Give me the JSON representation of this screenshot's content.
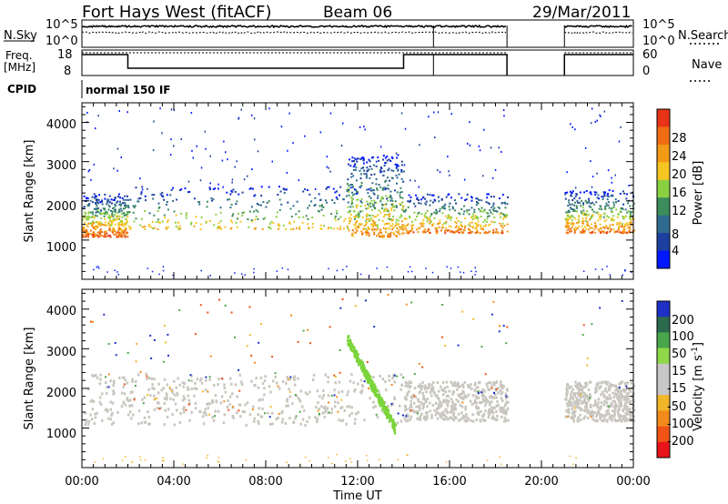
{
  "header": {
    "title": "Fort Hays West (fitACF)",
    "beam": "Beam 06",
    "date": "29/Mar/2011"
  },
  "noise_panel": {
    "left_label": "N.Sky",
    "left_ticks": [
      "10^5",
      "10^0"
    ],
    "right_label": "N.Search",
    "right_ticks": [
      "10^5",
      "10^0"
    ]
  },
  "freq_panel": {
    "left_label_1": "Freq.",
    "left_label_2": "[MHz]",
    "left_ticks": [
      "18",
      "8"
    ],
    "right_label": "Nave",
    "right_ticks": [
      "60",
      "0"
    ]
  },
  "cpid": {
    "label": "CPID",
    "value": "normal 150 IF"
  },
  "colors": {
    "power_scale": [
      "#0018ff",
      "#1d3fa0",
      "#2f6b8e",
      "#3d8c5c",
      "#8ad041",
      "#f6c623",
      "#f39a17",
      "#ef6c12",
      "#e83317"
    ],
    "velocity_scale": [
      "#1e30c8",
      "#2c6a4e",
      "#4aa64a",
      "#8fd84a",
      "#c8c8c8",
      "#c8c8c8",
      "#f2b629",
      "#f28b1c",
      "#ef5316",
      "#e8141a"
    ],
    "echo_gray": "#c8c6be",
    "echo_green": "#7ad43a"
  },
  "chart_data": [
    {
      "type": "heatmap",
      "title": "Power",
      "xlabel": "",
      "ylabel": "Slant Range [km]",
      "x_range_hours_ut": [
        0,
        24
      ],
      "ylim": [
        0,
        4500
      ],
      "yticks": [
        "4000",
        "3000",
        "2000",
        "1000"
      ],
      "colorbar": {
        "label": "Power [dB]",
        "ticks": [
          "28",
          "24",
          "20",
          "16",
          "12",
          "8",
          "4"
        ],
        "range_db": [
          0,
          30
        ]
      },
      "data_gaps_ut": [
        [
          18.5,
          21.0
        ]
      ],
      "echo_bands": [
        {
          "ut_hours": [
            0,
            2
          ],
          "range_km": [
            1100,
            2200
          ],
          "peak_power_db": 28
        },
        {
          "ut_hours": [
            2,
            14
          ],
          "range_km": [
            1300,
            2400
          ],
          "peak_power_db": 20
        },
        {
          "ut_hours": [
            11.5,
            14
          ],
          "range_km": [
            1100,
            3200
          ],
          "peak_power_db": 24
        },
        {
          "ut_hours": [
            14,
            18.5
          ],
          "range_km": [
            1200,
            2200
          ],
          "peak_power_db": 26
        },
        {
          "ut_hours": [
            21,
            24
          ],
          "range_km": [
            1200,
            2300
          ],
          "peak_power_db": 26
        }
      ]
    },
    {
      "type": "heatmap",
      "title": "Velocity",
      "xlabel": "Time UT",
      "ylabel": "Slant Range [km]",
      "x_range_hours_ut": [
        0,
        24
      ],
      "xticks": [
        "00:00",
        "04:00",
        "08:00",
        "12:00",
        "16:00",
        "20:00",
        "00:00"
      ],
      "ylim": [
        0,
        4500
      ],
      "yticks": [
        "4000",
        "3000",
        "2000",
        "1000"
      ],
      "colorbar": {
        "label_main": "Velocity [m s",
        "label_exp": "-1",
        "label_end": "]",
        "ticks": [
          "200",
          "100",
          "50",
          "15",
          "-15",
          "-50",
          "-100",
          "-200"
        ],
        "range_ms": [
          -250,
          250
        ]
      },
      "data_gaps_ut": [
        [
          18.5,
          21.0
        ]
      ],
      "echo_bands": [
        {
          "ut_hours": [
            0,
            14
          ],
          "range_km": [
            1100,
            2400
          ],
          "velocity_ms": 0
        },
        {
          "ut_hours": [
            11.5,
            13.6
          ],
          "range_km": [
            1000,
            3300
          ],
          "velocity_ms": 40
        },
        {
          "ut_hours": [
            14,
            18.5
          ],
          "range_km": [
            1200,
            2200
          ],
          "velocity_ms": 0
        },
        {
          "ut_hours": [
            21,
            24
          ],
          "range_km": [
            1200,
            2200
          ],
          "velocity_ms": 0
        }
      ]
    }
  ]
}
